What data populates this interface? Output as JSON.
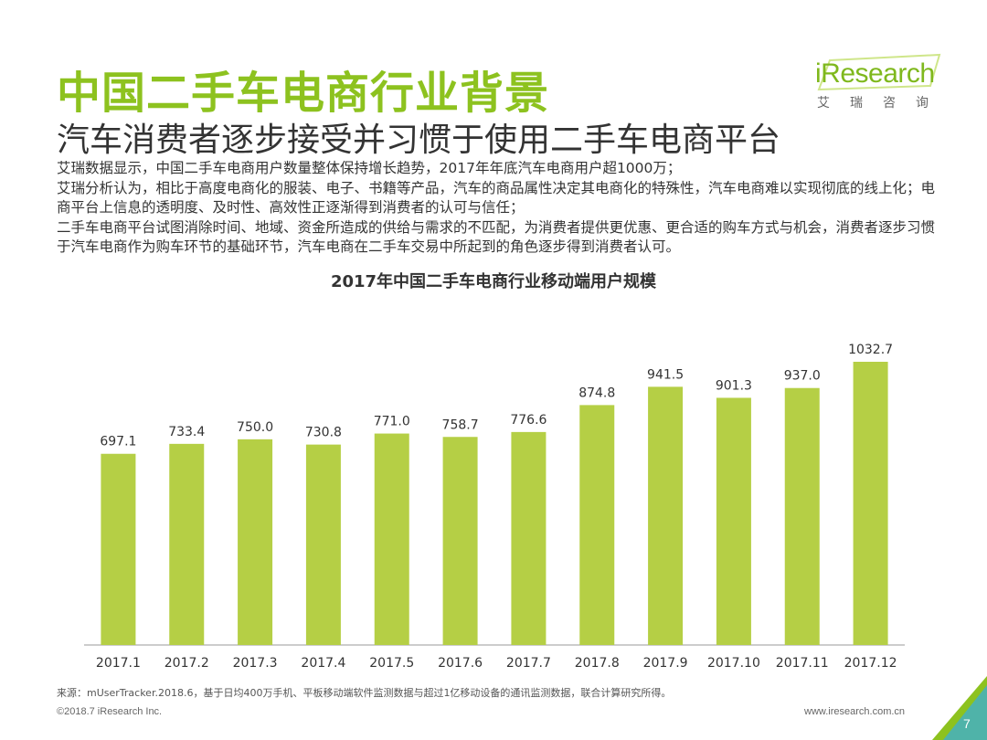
{
  "header": {
    "title": "中国二手车电商行业背景",
    "subtitle": "汽车消费者逐步接受并习惯于使用二手车电商平台"
  },
  "logo": {
    "text": "iResearch",
    "cn": "艾瑞咨询"
  },
  "body": {
    "p1": "艾瑞数据显示，中国二手车电商用户数量整体保持增长趋势，2017年年底汽车电商用户超1000万；",
    "p2": "艾瑞分析认为，相比于高度电商化的服装、电子、书籍等产品，汽车的商品属性决定其电商化的特殊性，汽车电商难以实现彻底的线上化；电商平台上信息的透明度、及时性、高效性正逐渐得到消费者的认可与信任；",
    "p3": "二手车电商平台试图消除时间、地域、资金所造成的供给与需求的不匹配，为消费者提供更优惠、更合适的购车方式与机会，消费者逐步习惯于汽车电商作为购车环节的基础环节，汽车电商在二手车交易中所起到的角色逐步得到消费者认可。"
  },
  "chart_data": {
    "type": "bar",
    "title": "2017年中国二手车电商行业移动端用户规模",
    "categories": [
      "2017.1",
      "2017.2",
      "2017.3",
      "2017.4",
      "2017.5",
      "2017.6",
      "2017.7",
      "2017.8",
      "2017.9",
      "2017.10",
      "2017.11",
      "2017.12"
    ],
    "values": [
      697.1,
      733.4,
      750.0,
      730.8,
      771.0,
      758.7,
      776.6,
      874.8,
      941.5,
      901.3,
      937.0,
      1032.7
    ],
    "value_labels": [
      "697.1",
      "733.4",
      "750.0",
      "730.8",
      "771.0",
      "758.7",
      "776.6",
      "874.8",
      "941.5",
      "901.3",
      "937.0",
      "1032.7"
    ],
    "xlabel": "",
    "ylabel": "",
    "ylim": [
      0,
      1032.7
    ],
    "grid": false,
    "bar_color": "#b5cf45"
  },
  "footer": {
    "source": "来源：mUserTracker.2018.6，基于日均400万手机、平板移动端软件监测数据与超过1亿移动设备的通讯监测数据，联合计算研究所得。",
    "copyright": "©2018.7 iResearch Inc.",
    "website": "www.iresearch.com.cn",
    "page": "7"
  }
}
